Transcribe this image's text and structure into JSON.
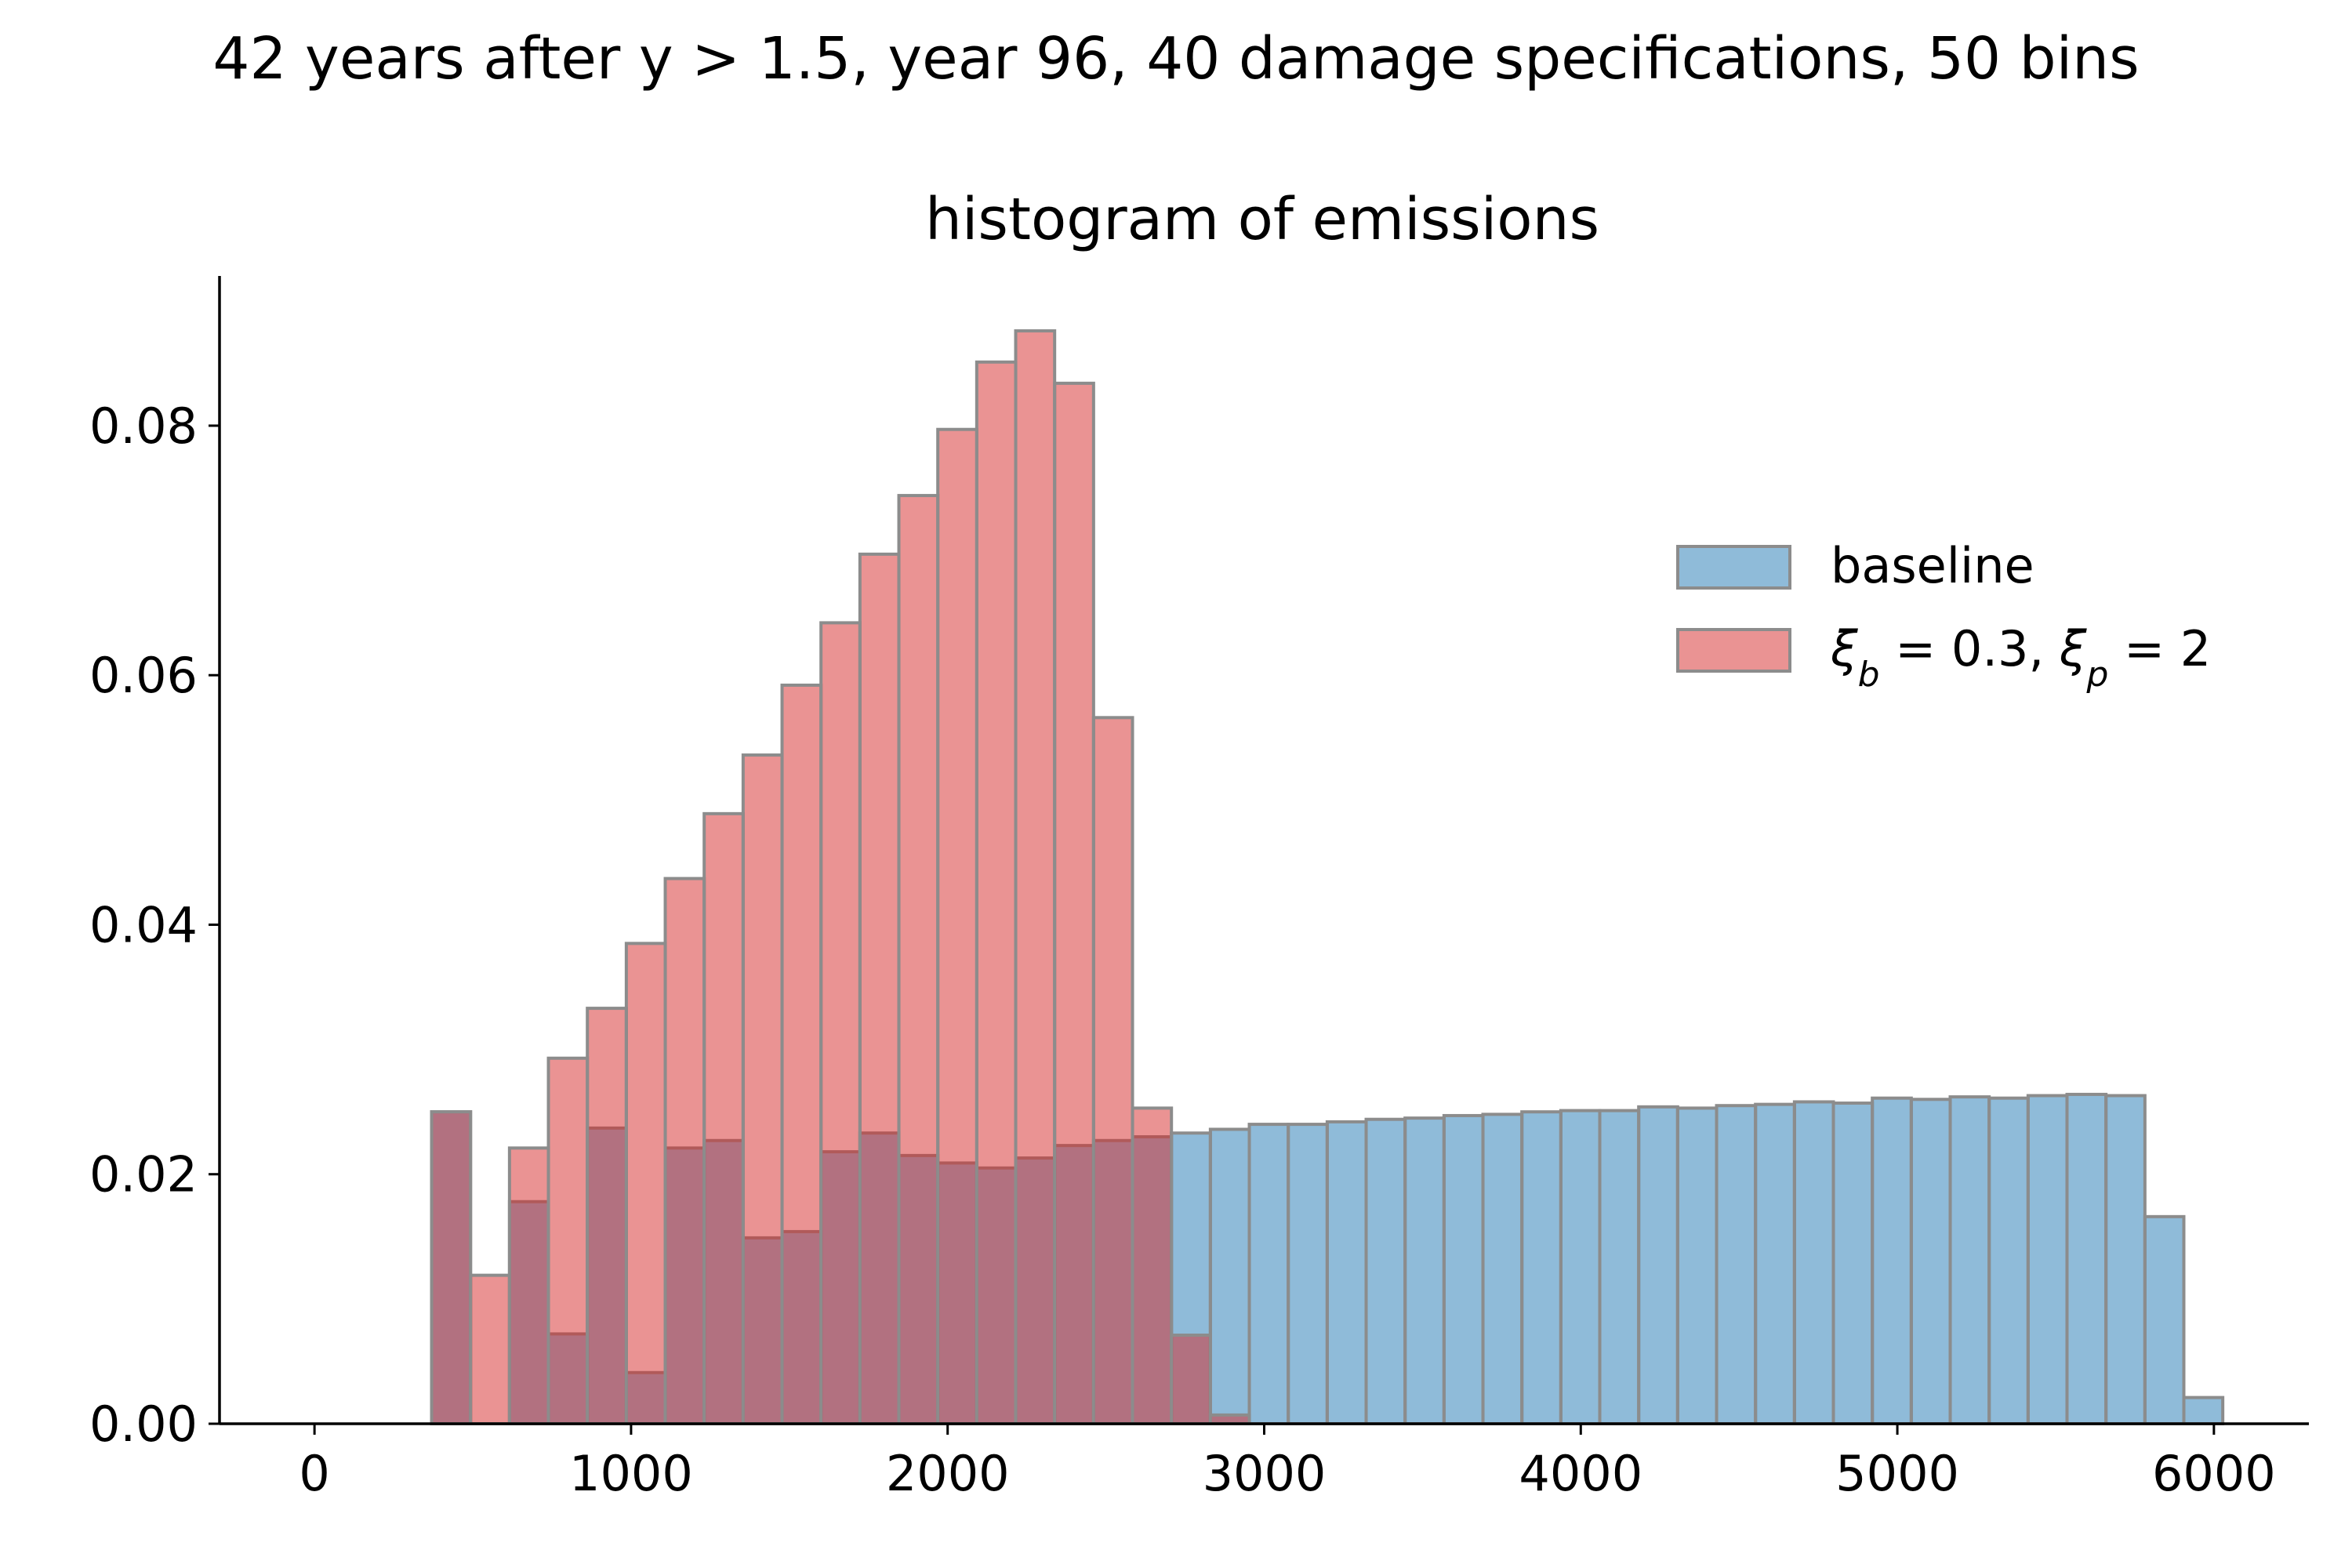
{
  "suptitle": "42 years after y > 1.5, year 96, 40 damage specifications, 50 bins",
  "chart_data": {
    "type": "histogram",
    "title": "histogram of emissions",
    "xlabel": "",
    "ylabel": "",
    "xlim": [
      -300,
      6300
    ],
    "ylim": [
      0,
      0.092
    ],
    "xticks": [
      0,
      1000,
      2000,
      3000,
      4000,
      5000,
      6000
    ],
    "yticks": [
      0.0,
      0.02,
      0.04,
      0.06,
      0.08
    ],
    "xtick_labels": [
      "0",
      "1000",
      "2000",
      "3000",
      "4000",
      "5000",
      "6000"
    ],
    "ytick_labels": [
      "0.00",
      "0.02",
      "0.04",
      "0.06",
      "0.08"
    ],
    "grid": false,
    "legend_position": "upper right",
    "bin_width": 123,
    "series": [
      {
        "name": "baseline",
        "color": "#1f77b4",
        "alpha": 0.5,
        "bin_start": 370,
        "values": [
          0.025,
          0.0,
          0.0178,
          0.0072,
          0.0237,
          0.0041,
          0.0221,
          0.0227,
          0.0149,
          0.0154,
          0.0218,
          0.0233,
          0.0215,
          0.0209,
          0.0205,
          0.0213,
          0.0223,
          0.0227,
          0.023,
          0.0233,
          0.0236,
          0.024,
          0.024,
          0.0242,
          0.0244,
          0.0245,
          0.0247,
          0.0248,
          0.025,
          0.0251,
          0.0251,
          0.0254,
          0.0253,
          0.0255,
          0.0256,
          0.0258,
          0.0257,
          0.0261,
          0.026,
          0.0262,
          0.0261,
          0.0263,
          0.0264,
          0.0263,
          0.0166,
          0.0021
        ]
      },
      {
        "name": "ξb = 0.3, ξp = 2",
        "color": "#d62728",
        "alpha": 0.5,
        "bin_start": 370,
        "values": [
          0.025,
          0.0119,
          0.0221,
          0.0293,
          0.0333,
          0.0385,
          0.0437,
          0.0489,
          0.0536,
          0.0592,
          0.0642,
          0.0697,
          0.0744,
          0.0797,
          0.0851,
          0.0876,
          0.0834,
          0.0566,
          0.0253,
          0.0071,
          0.0007
        ]
      }
    ]
  }
}
